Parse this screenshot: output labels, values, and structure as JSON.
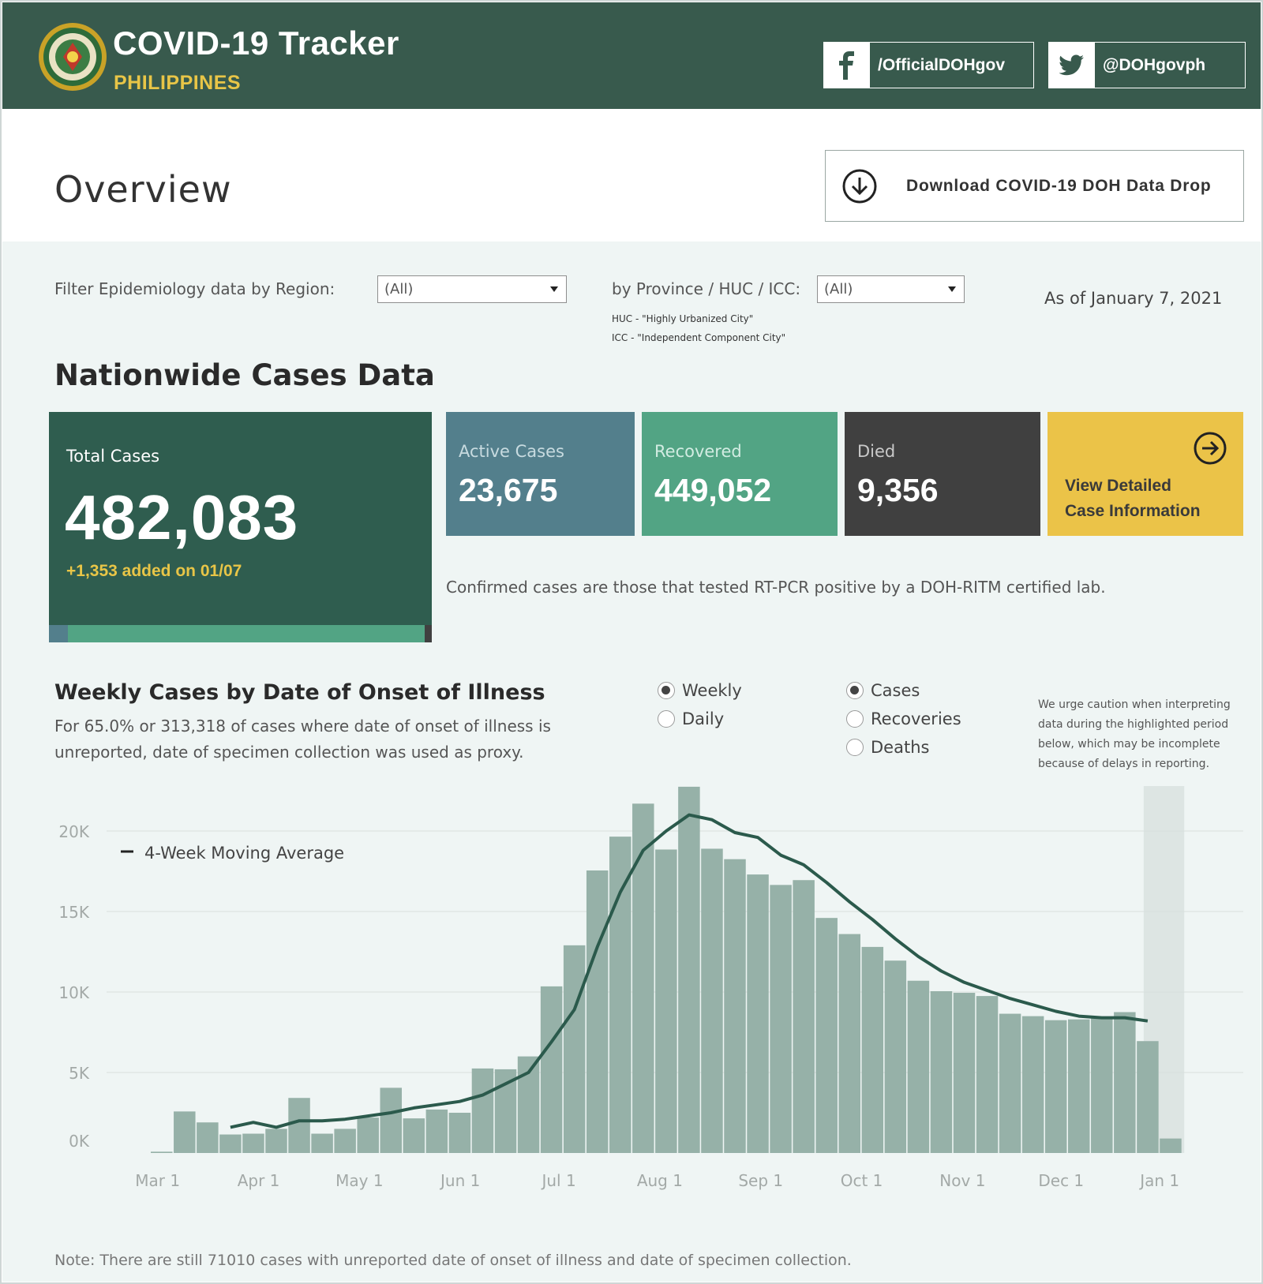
{
  "header": {
    "title": "COVID-19 Tracker",
    "subtitle": "PHILIPPINES",
    "facebook_handle": "/OfficialDOHgov",
    "twitter_handle": "@DOHgovph",
    "bg_color": "#385a4d",
    "accent_color": "#e8c547"
  },
  "overview": {
    "title": "Overview",
    "download_label": "Download COVID-19 DOH Data Drop"
  },
  "filters": {
    "region_label": "Filter Epidemiology data by Region:",
    "region_value": "(All)",
    "province_label": "by Province / HUC / ICC:",
    "province_value": "(All)",
    "huc_note": "HUC - \"Highly Urbanized City\"",
    "icc_note": "ICC - \"Independent Component City\"",
    "as_of": "As of January 7, 2021"
  },
  "nationwide": {
    "title": "Nationwide Cases Data",
    "total": {
      "label": "Total Cases",
      "value": "482,083",
      "added": "+1,353 added on 01/07"
    },
    "active": {
      "label": "Active Cases",
      "value": "23,675",
      "share": 0.0491
    },
    "recovered": {
      "label": "Recovered",
      "value": "449,052",
      "share": 0.9315
    },
    "died": {
      "label": "Died",
      "value": "9,356",
      "share": 0.0194
    },
    "view_detail": {
      "line1": "View Detailed",
      "line2": "Case Information"
    },
    "confirm_note": "Confirmed cases are those that tested RT-PCR positive by a DOH-RITM certified lab."
  },
  "weekly": {
    "title": "Weekly Cases by Date of Onset of Illness",
    "subtitle": "For 65.0% or 313,318 of cases where date of onset of illness is unreported, date of specimen collection was used as proxy.",
    "period_options": [
      {
        "label": "Weekly",
        "selected": true
      },
      {
        "label": "Daily",
        "selected": false
      }
    ],
    "measure_options": [
      {
        "label": "Cases",
        "selected": true
      },
      {
        "label": "Recoveries",
        "selected": false
      },
      {
        "label": "Deaths",
        "selected": false
      }
    ],
    "caution": "We urge caution when interpreting data during the highlighted period below, which may be incomplete because of delays in reporting.",
    "footnote": "Note: There are still 71010 cases with unreported date of onset of illness and date of specimen collection."
  },
  "chart_data": {
    "type": "bar",
    "title": "Weekly Cases by Date of Onset of Illness",
    "legend": "4-Week Moving Average",
    "y_ticks": [
      "0K",
      "5K",
      "10K",
      "15K",
      "20K"
    ],
    "y_tick_values": [
      0,
      5000,
      10000,
      15000,
      20000
    ],
    "ylim": [
      0,
      24000
    ],
    "x_ticks": [
      "Mar 1",
      "Apr 1",
      "May 1",
      "Jun 1",
      "Jul 1",
      "Aug 1",
      "Sep 1",
      "Oct 1",
      "Nov 1",
      "Dec 1",
      "Jan 1"
    ],
    "x_tick_positions": [
      0.3,
      4.7,
      9.1,
      13.5,
      17.8,
      22.2,
      26.6,
      31.0,
      35.4,
      39.7,
      44.0
    ],
    "bar_values": [
      80,
      2580,
      1900,
      1150,
      1200,
      1500,
      3420,
      1200,
      1500,
      2200,
      4050,
      2150,
      2700,
      2500,
      5250,
      5200,
      6000,
      10350,
      12900,
      17550,
      19650,
      21700,
      18850,
      22750,
      18900,
      18250,
      17300,
      16650,
      16950,
      14600,
      13600,
      12800,
      11950,
      10700,
      10050,
      9950,
      9750,
      8650,
      8500,
      8250,
      8300,
      8400,
      8750,
      6950,
      900
    ],
    "moving_average": [
      null,
      null,
      null,
      1600,
      1900,
      1600,
      2000,
      2000,
      2100,
      2300,
      2500,
      2800,
      3000,
      3200,
      3600,
      4300,
      5000,
      6900,
      8900,
      12800,
      16200,
      18800,
      20000,
      21000,
      20700,
      19900,
      19600,
      18500,
      17900,
      16800,
      15600,
      14500,
      13300,
      12200,
      11300,
      10600,
      10100,
      9600,
      9200,
      8800,
      8500,
      8400,
      8400,
      8200,
      null
    ],
    "highlight_last_n": 2,
    "bar_color": "#96b1a8",
    "line_color": "#2b5a4c"
  }
}
